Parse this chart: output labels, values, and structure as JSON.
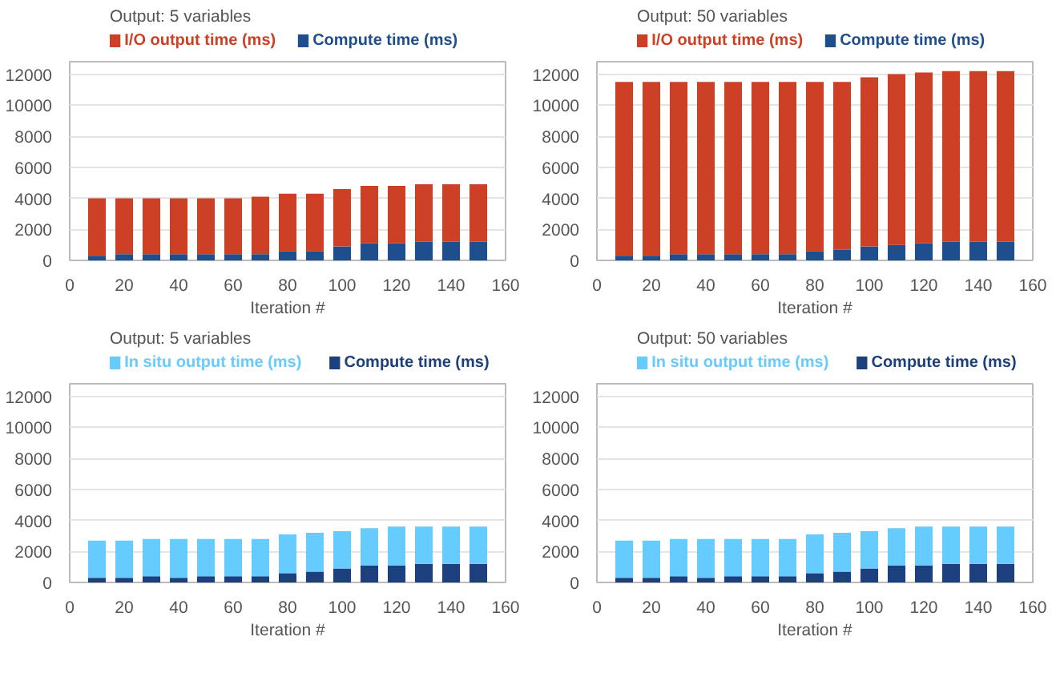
{
  "chart_data": [
    {
      "type": "bar",
      "stacked": true,
      "legend_title": "Output: 5 variables",
      "legend": "top",
      "grid": "y",
      "xlabel": "Iteration #",
      "xlim": [
        0,
        160
      ],
      "xticks": [
        0,
        20,
        40,
        60,
        80,
        100,
        120,
        140,
        160
      ],
      "ylim": [
        0,
        12800
      ],
      "yticks": [
        0,
        2000,
        4000,
        6000,
        8000,
        10000,
        12000
      ],
      "x": [
        10,
        20,
        30,
        40,
        50,
        60,
        70,
        80,
        90,
        100,
        110,
        120,
        130,
        140,
        150
      ],
      "series": [
        {
          "name": "Compute time (ms)",
          "color": "#1f4e8c",
          "values": [
            300,
            400,
            400,
            400,
            400,
            400,
            400,
            600,
            600,
            900,
            1100,
            1100,
            1200,
            1200,
            1200
          ]
        },
        {
          "name": "I/O output time (ms)",
          "color": "#cc4125",
          "values": [
            3700,
            3600,
            3600,
            3600,
            3600,
            3600,
            3700,
            3700,
            3700,
            3700,
            3700,
            3700,
            3700,
            3700,
            3700
          ]
        }
      ]
    },
    {
      "type": "bar",
      "stacked": true,
      "legend_title": "Output: 50 variables",
      "legend": "top",
      "grid": "y",
      "xlabel": "Iteration #",
      "xlim": [
        0,
        160
      ],
      "xticks": [
        0,
        20,
        40,
        60,
        80,
        100,
        120,
        140,
        160
      ],
      "ylim": [
        0,
        12800
      ],
      "yticks": [
        0,
        2000,
        4000,
        6000,
        8000,
        10000,
        12000
      ],
      "x": [
        10,
        20,
        30,
        40,
        50,
        60,
        70,
        80,
        90,
        100,
        110,
        120,
        130,
        140,
        150
      ],
      "series": [
        {
          "name": "Compute time (ms)",
          "color": "#1f4e8c",
          "values": [
            300,
            300,
            400,
            400,
            400,
            400,
            400,
            600,
            700,
            900,
            1000,
            1100,
            1200,
            1200,
            1200
          ]
        },
        {
          "name": "I/O output time (ms)",
          "color": "#cc4125",
          "values": [
            11200,
            11200,
            11100,
            11100,
            11100,
            11100,
            11100,
            10900,
            10800,
            10900,
            11000,
            11000,
            11000,
            11000,
            11000
          ]
        }
      ]
    },
    {
      "type": "bar",
      "stacked": true,
      "legend_title": "Output: 5 variables",
      "legend": "top",
      "grid": "y",
      "xlabel": "Iteration #",
      "xlim": [
        0,
        160
      ],
      "xticks": [
        0,
        20,
        40,
        60,
        80,
        100,
        120,
        140,
        160
      ],
      "ylim": [
        0,
        12800
      ],
      "yticks": [
        0,
        2000,
        4000,
        6000,
        8000,
        10000,
        12000
      ],
      "x": [
        10,
        20,
        30,
        40,
        50,
        60,
        70,
        80,
        90,
        100,
        110,
        120,
        130,
        140,
        150
      ],
      "series": [
        {
          "name": "Compute time (ms)",
          "color": "#1c3f7e",
          "values": [
            300,
            300,
            400,
            300,
            400,
            400,
            400,
            600,
            700,
            900,
            1100,
            1100,
            1200,
            1200,
            1200
          ]
        },
        {
          "name": "In situ output time (ms)",
          "color": "#66ccff",
          "values": [
            2400,
            2400,
            2400,
            2500,
            2400,
            2400,
            2400,
            2500,
            2500,
            2400,
            2400,
            2500,
            2400,
            2400,
            2400
          ]
        }
      ]
    },
    {
      "type": "bar",
      "stacked": true,
      "legend_title": "Output: 50 variables",
      "legend": "top",
      "grid": "y",
      "xlabel": "Iteration #",
      "xlim": [
        0,
        160
      ],
      "xticks": [
        0,
        20,
        40,
        60,
        80,
        100,
        120,
        140,
        160
      ],
      "ylim": [
        0,
        12800
      ],
      "yticks": [
        0,
        2000,
        4000,
        6000,
        8000,
        10000,
        12000
      ],
      "x": [
        10,
        20,
        30,
        40,
        50,
        60,
        70,
        80,
        90,
        100,
        110,
        120,
        130,
        140,
        150
      ],
      "series": [
        {
          "name": "Compute time (ms)",
          "color": "#1c3f7e",
          "values": [
            300,
            300,
            400,
            300,
            400,
            400,
            400,
            600,
            700,
            900,
            1100,
            1100,
            1200,
            1200,
            1200
          ]
        },
        {
          "name": "In situ output time (ms)",
          "color": "#66ccff",
          "values": [
            2400,
            2400,
            2400,
            2500,
            2400,
            2400,
            2400,
            2500,
            2500,
            2400,
            2400,
            2500,
            2400,
            2400,
            2400
          ]
        }
      ]
    }
  ]
}
